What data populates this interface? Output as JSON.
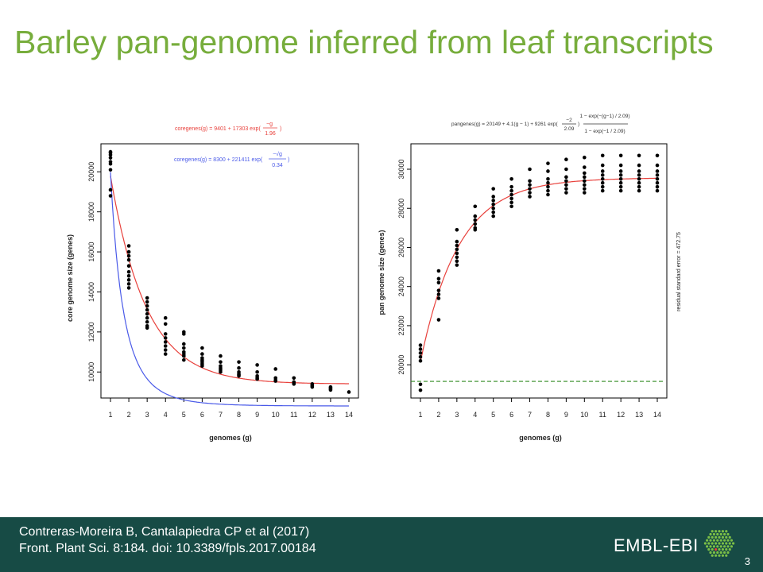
{
  "slide": {
    "title": "Barley pan-genome inferred from leaf transcripts",
    "citation_line1": "Contreras-Moreira B, Cantalapiedra CP et al (2017)",
    "citation_line2": "Front. Plant Sci. 8:184. doi: 10.3389/fpls.2017.00184",
    "brand": "EMBL-EBI",
    "page_number": "3"
  },
  "colors": {
    "title": "#77ad3c",
    "footer": "#174b45",
    "red_fit": "#e8413c",
    "blue_fit": "#4a5ae8",
    "green_line": "#2f8a1f",
    "points": "#000000",
    "logo": "#7bbf46"
  },
  "chart_data": [
    {
      "type": "scatter",
      "xlabel": "genomes (g)",
      "ylabel": "core genome size (genes)",
      "xlim": [
        1,
        14
      ],
      "ylim": [
        8700,
        21400
      ],
      "xticks": [
        1,
        2,
        3,
        4,
        5,
        6,
        7,
        8,
        9,
        10,
        11,
        12,
        13,
        14
      ],
      "yticks": [
        10000,
        12000,
        14000,
        16000,
        18000,
        20000
      ],
      "legend": [
        {
          "text": "coregenes(g) = 9401 + 17303 exp(−g / 1.96)",
          "color": "red"
        },
        {
          "text": "coregenes(g) = 8300 + 221411 exp(−√g / 0.34)",
          "color": "blue"
        }
      ],
      "series": [
        {
          "kind": "points",
          "x": 1,
          "values": [
            21000,
            20950,
            20850,
            20700,
            20500,
            20400,
            20100,
            19100,
            18800
          ]
        },
        {
          "kind": "points",
          "x": 2,
          "values": [
            16300,
            16000,
            15800,
            15600,
            15300,
            15000,
            14800,
            14600,
            14400,
            14200
          ]
        },
        {
          "kind": "points",
          "x": 3,
          "values": [
            13700,
            13500,
            13300,
            13100,
            12900,
            12700,
            12500,
            12300,
            12200
          ]
        },
        {
          "kind": "points",
          "x": 4,
          "values": [
            12700,
            12400,
            11900,
            11700,
            11500,
            11300,
            11100,
            10900
          ]
        },
        {
          "kind": "points",
          "x": 5,
          "values": [
            12000,
            11900,
            11400,
            11200,
            11000,
            10900,
            10800,
            10600
          ]
        },
        {
          "kind": "points",
          "x": 6,
          "values": [
            11200,
            10900,
            10700,
            10600,
            10500,
            10400,
            10300
          ]
        },
        {
          "kind": "points",
          "x": 7,
          "values": [
            10800,
            10500,
            10300,
            10200,
            10100,
            10000
          ]
        },
        {
          "kind": "points",
          "x": 8,
          "values": [
            10500,
            10200,
            10000,
            9900,
            9850,
            9800
          ]
        },
        {
          "kind": "points",
          "x": 9,
          "values": [
            10350,
            10000,
            9800,
            9700,
            9650
          ]
        },
        {
          "kind": "points",
          "x": 10,
          "values": [
            10150,
            9700,
            9600,
            9550
          ]
        },
        {
          "kind": "points",
          "x": 11,
          "values": [
            9700,
            9500,
            9450,
            9400
          ]
        },
        {
          "kind": "points",
          "x": 12,
          "values": [
            9400,
            9350,
            9300,
            9250
          ]
        },
        {
          "kind": "points",
          "x": 13,
          "values": [
            9250,
            9200,
            9150,
            9100
          ]
        },
        {
          "kind": "points",
          "x": 14,
          "values": [
            9000
          ]
        },
        {
          "kind": "curve",
          "color": "red",
          "model": "9401 + 17303*exp(-g/1.96)"
        },
        {
          "kind": "curve",
          "color": "blue",
          "model": "8300 + 221411*exp(-sqrt(g)/0.34)"
        }
      ]
    },
    {
      "type": "scatter",
      "xlabel": "genomes (g)",
      "ylabel": "pan genome size (genes)",
      "right_label": "residual standard error = 472.75",
      "xlim": [
        1,
        14
      ],
      "ylim": [
        18300,
        31300
      ],
      "xticks": [
        1,
        2,
        3,
        4,
        5,
        6,
        7,
        8,
        9,
        10,
        11,
        12,
        13,
        14
      ],
      "yticks": [
        20000,
        22000,
        24000,
        26000,
        28000,
        30000
      ],
      "legend": [
        {
          "text": "pangenes(g) = 20149 + 4.1(g − 1) + 9261 exp(−2 / 2.09) · (1 − exp(−(g−1)/2.09)) / (1 − exp(−1/2.09))",
          "color": "black"
        }
      ],
      "series": [
        {
          "kind": "points",
          "x": 1,
          "values": [
            21000,
            20800,
            20600,
            20400,
            20200,
            19000,
            18700
          ]
        },
        {
          "kind": "points",
          "x": 2,
          "values": [
            24800,
            24400,
            24200,
            23800,
            23600,
            23400,
            22300
          ]
        },
        {
          "kind": "points",
          "x": 3,
          "values": [
            26900,
            26300,
            26100,
            25900,
            25700,
            25500,
            25300,
            25100
          ]
        },
        {
          "kind": "points",
          "x": 4,
          "values": [
            28100,
            27600,
            27400,
            27200,
            27000,
            26900
          ]
        },
        {
          "kind": "points",
          "x": 5,
          "values": [
            29000,
            28600,
            28400,
            28200,
            28000,
            27800,
            27600
          ]
        },
        {
          "kind": "points",
          "x": 6,
          "values": [
            29500,
            29100,
            28900,
            28700,
            28500,
            28300,
            28100
          ]
        },
        {
          "kind": "points",
          "x": 7,
          "values": [
            30000,
            29400,
            29200,
            29000,
            28800,
            28600
          ]
        },
        {
          "kind": "points",
          "x": 8,
          "values": [
            30300,
            29900,
            29500,
            29300,
            29100,
            28900,
            28700
          ]
        },
        {
          "kind": "points",
          "x": 9,
          "values": [
            30500,
            30000,
            29600,
            29400,
            29200,
            29000,
            28800
          ]
        },
        {
          "kind": "points",
          "x": 10,
          "values": [
            30600,
            30100,
            29800,
            29600,
            29400,
            29200,
            29000,
            28800
          ]
        },
        {
          "kind": "points",
          "x": 11,
          "values": [
            30700,
            30200,
            29900,
            29700,
            29500,
            29300,
            29100,
            28900
          ]
        },
        {
          "kind": "points",
          "x": 12,
          "values": [
            30700,
            30200,
            29900,
            29700,
            29500,
            29300,
            29100,
            28900
          ]
        },
        {
          "kind": "points",
          "x": 13,
          "values": [
            30700,
            30200,
            29900,
            29700,
            29500,
            29300,
            29100,
            28900
          ]
        },
        {
          "kind": "points",
          "x": 14,
          "values": [
            30700,
            30200,
            29900,
            29700,
            29500,
            29300,
            29100,
            28900
          ]
        },
        {
          "kind": "curve",
          "color": "red",
          "model": "20149 + 4.1*(g-1) + 9261*exp(-2/2.09)*(1-exp(-(g-1)/2.09))/(1-exp(-1/2.09))"
        },
        {
          "kind": "hline",
          "color": "green",
          "style": "dashed",
          "value": 19150
        }
      ]
    }
  ]
}
